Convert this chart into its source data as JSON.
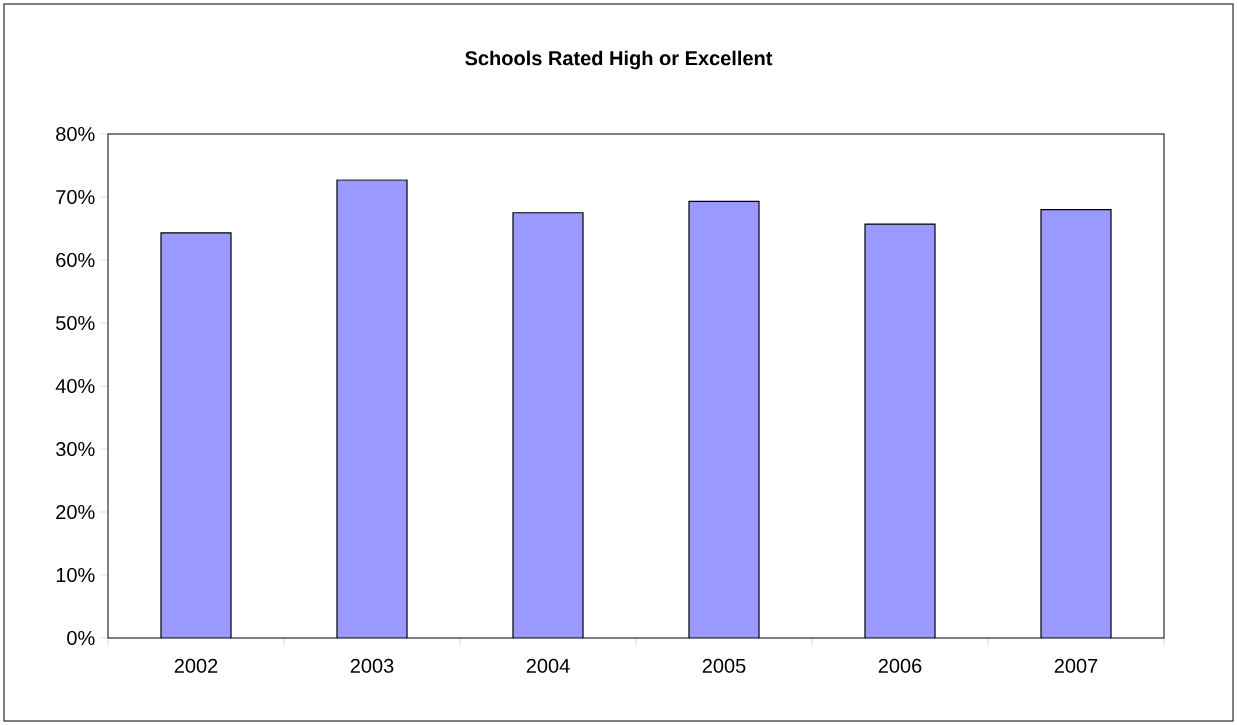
{
  "chart_data": {
    "type": "bar",
    "title": "Schools Rated High or Excellent",
    "categories": [
      "2002",
      "2003",
      "2004",
      "2005",
      "2006",
      "2007"
    ],
    "values": [
      64.3,
      72.7,
      67.5,
      69.3,
      65.7,
      68.0
    ],
    "color": "#9999ff",
    "ylim": [
      0,
      80
    ],
    "yticks": [
      {
        "value": 0,
        "label": "0%"
      },
      {
        "value": 10,
        "label": "10%"
      },
      {
        "value": 20,
        "label": "20%"
      },
      {
        "value": 30,
        "label": "30%"
      },
      {
        "value": 40,
        "label": "40%"
      },
      {
        "value": 50,
        "label": "50%"
      },
      {
        "value": 60,
        "label": "60%"
      },
      {
        "value": 70,
        "label": "70%"
      },
      {
        "value": 80,
        "label": "80%"
      }
    ],
    "grid": false
  }
}
